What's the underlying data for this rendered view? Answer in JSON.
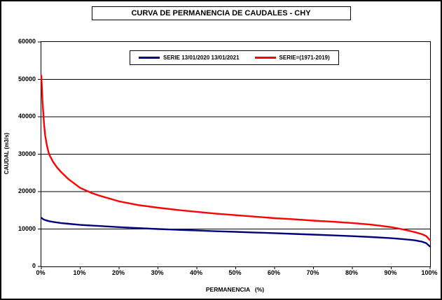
{
  "window": {
    "background": "#FFFFFF",
    "border_color": "#000000"
  },
  "chart_data": {
    "type": "line",
    "title": "CURVA DE PERMANENCIA DE CAUDALES - CHY",
    "xlabel": "PERMANENCIA   (%)",
    "ylabel": "CAUDAL (m3/s)",
    "xlim": [
      0,
      100
    ],
    "ylim": [
      0,
      60000
    ],
    "grid": "horizontal-only",
    "grid_color": "#000000",
    "legend_position": "top-center-inside",
    "xticks": [
      "0%",
      "10%",
      "20%",
      "30%",
      "40%",
      "50%",
      "60%",
      "70%",
      "80%",
      "90%",
      "100%"
    ],
    "xtick_values": [
      0,
      10,
      20,
      30,
      40,
      50,
      60,
      70,
      80,
      90,
      100
    ],
    "yticks": [
      "0",
      "10000",
      "20000",
      "30000",
      "40000",
      "50000",
      "60000"
    ],
    "ytick_values": [
      0,
      10000,
      20000,
      30000,
      40000,
      50000,
      60000
    ],
    "series": [
      {
        "name": "SERIE 13/01/2020 13/01/2021",
        "color": "#000080",
        "x": [
          0,
          0.5,
          1,
          2,
          3,
          5,
          7,
          10,
          15,
          20,
          25,
          30,
          35,
          40,
          45,
          50,
          55,
          60,
          65,
          70,
          75,
          80,
          85,
          90,
          93,
          96,
          98,
          99,
          100
        ],
        "values": [
          13000,
          12600,
          12400,
          12100,
          11900,
          11600,
          11400,
          11100,
          10800,
          10500,
          10250,
          10000,
          9800,
          9600,
          9400,
          9250,
          9050,
          8900,
          8700,
          8500,
          8300,
          8100,
          7850,
          7550,
          7300,
          7000,
          6600,
          6200,
          5300
        ]
      },
      {
        "name": "SERIE=(1971-2019)",
        "color": "#FF0000",
        "x": [
          0,
          0.3,
          0.7,
          1,
          1.5,
          2,
          3,
          4,
          5,
          7,
          10,
          13,
          15,
          20,
          25,
          30,
          35,
          40,
          45,
          50,
          55,
          60,
          65,
          70,
          75,
          80,
          85,
          90,
          93,
          96,
          98,
          99,
          100
        ],
        "values": [
          51000,
          44000,
          38000,
          35000,
          32000,
          30000,
          28000,
          26500,
          25300,
          23300,
          21000,
          19600,
          18900,
          17400,
          16400,
          15700,
          15100,
          14600,
          14100,
          13700,
          13300,
          12900,
          12600,
          12250,
          11950,
          11600,
          11150,
          10500,
          9900,
          9200,
          8600,
          8100,
          7000
        ]
      }
    ]
  }
}
